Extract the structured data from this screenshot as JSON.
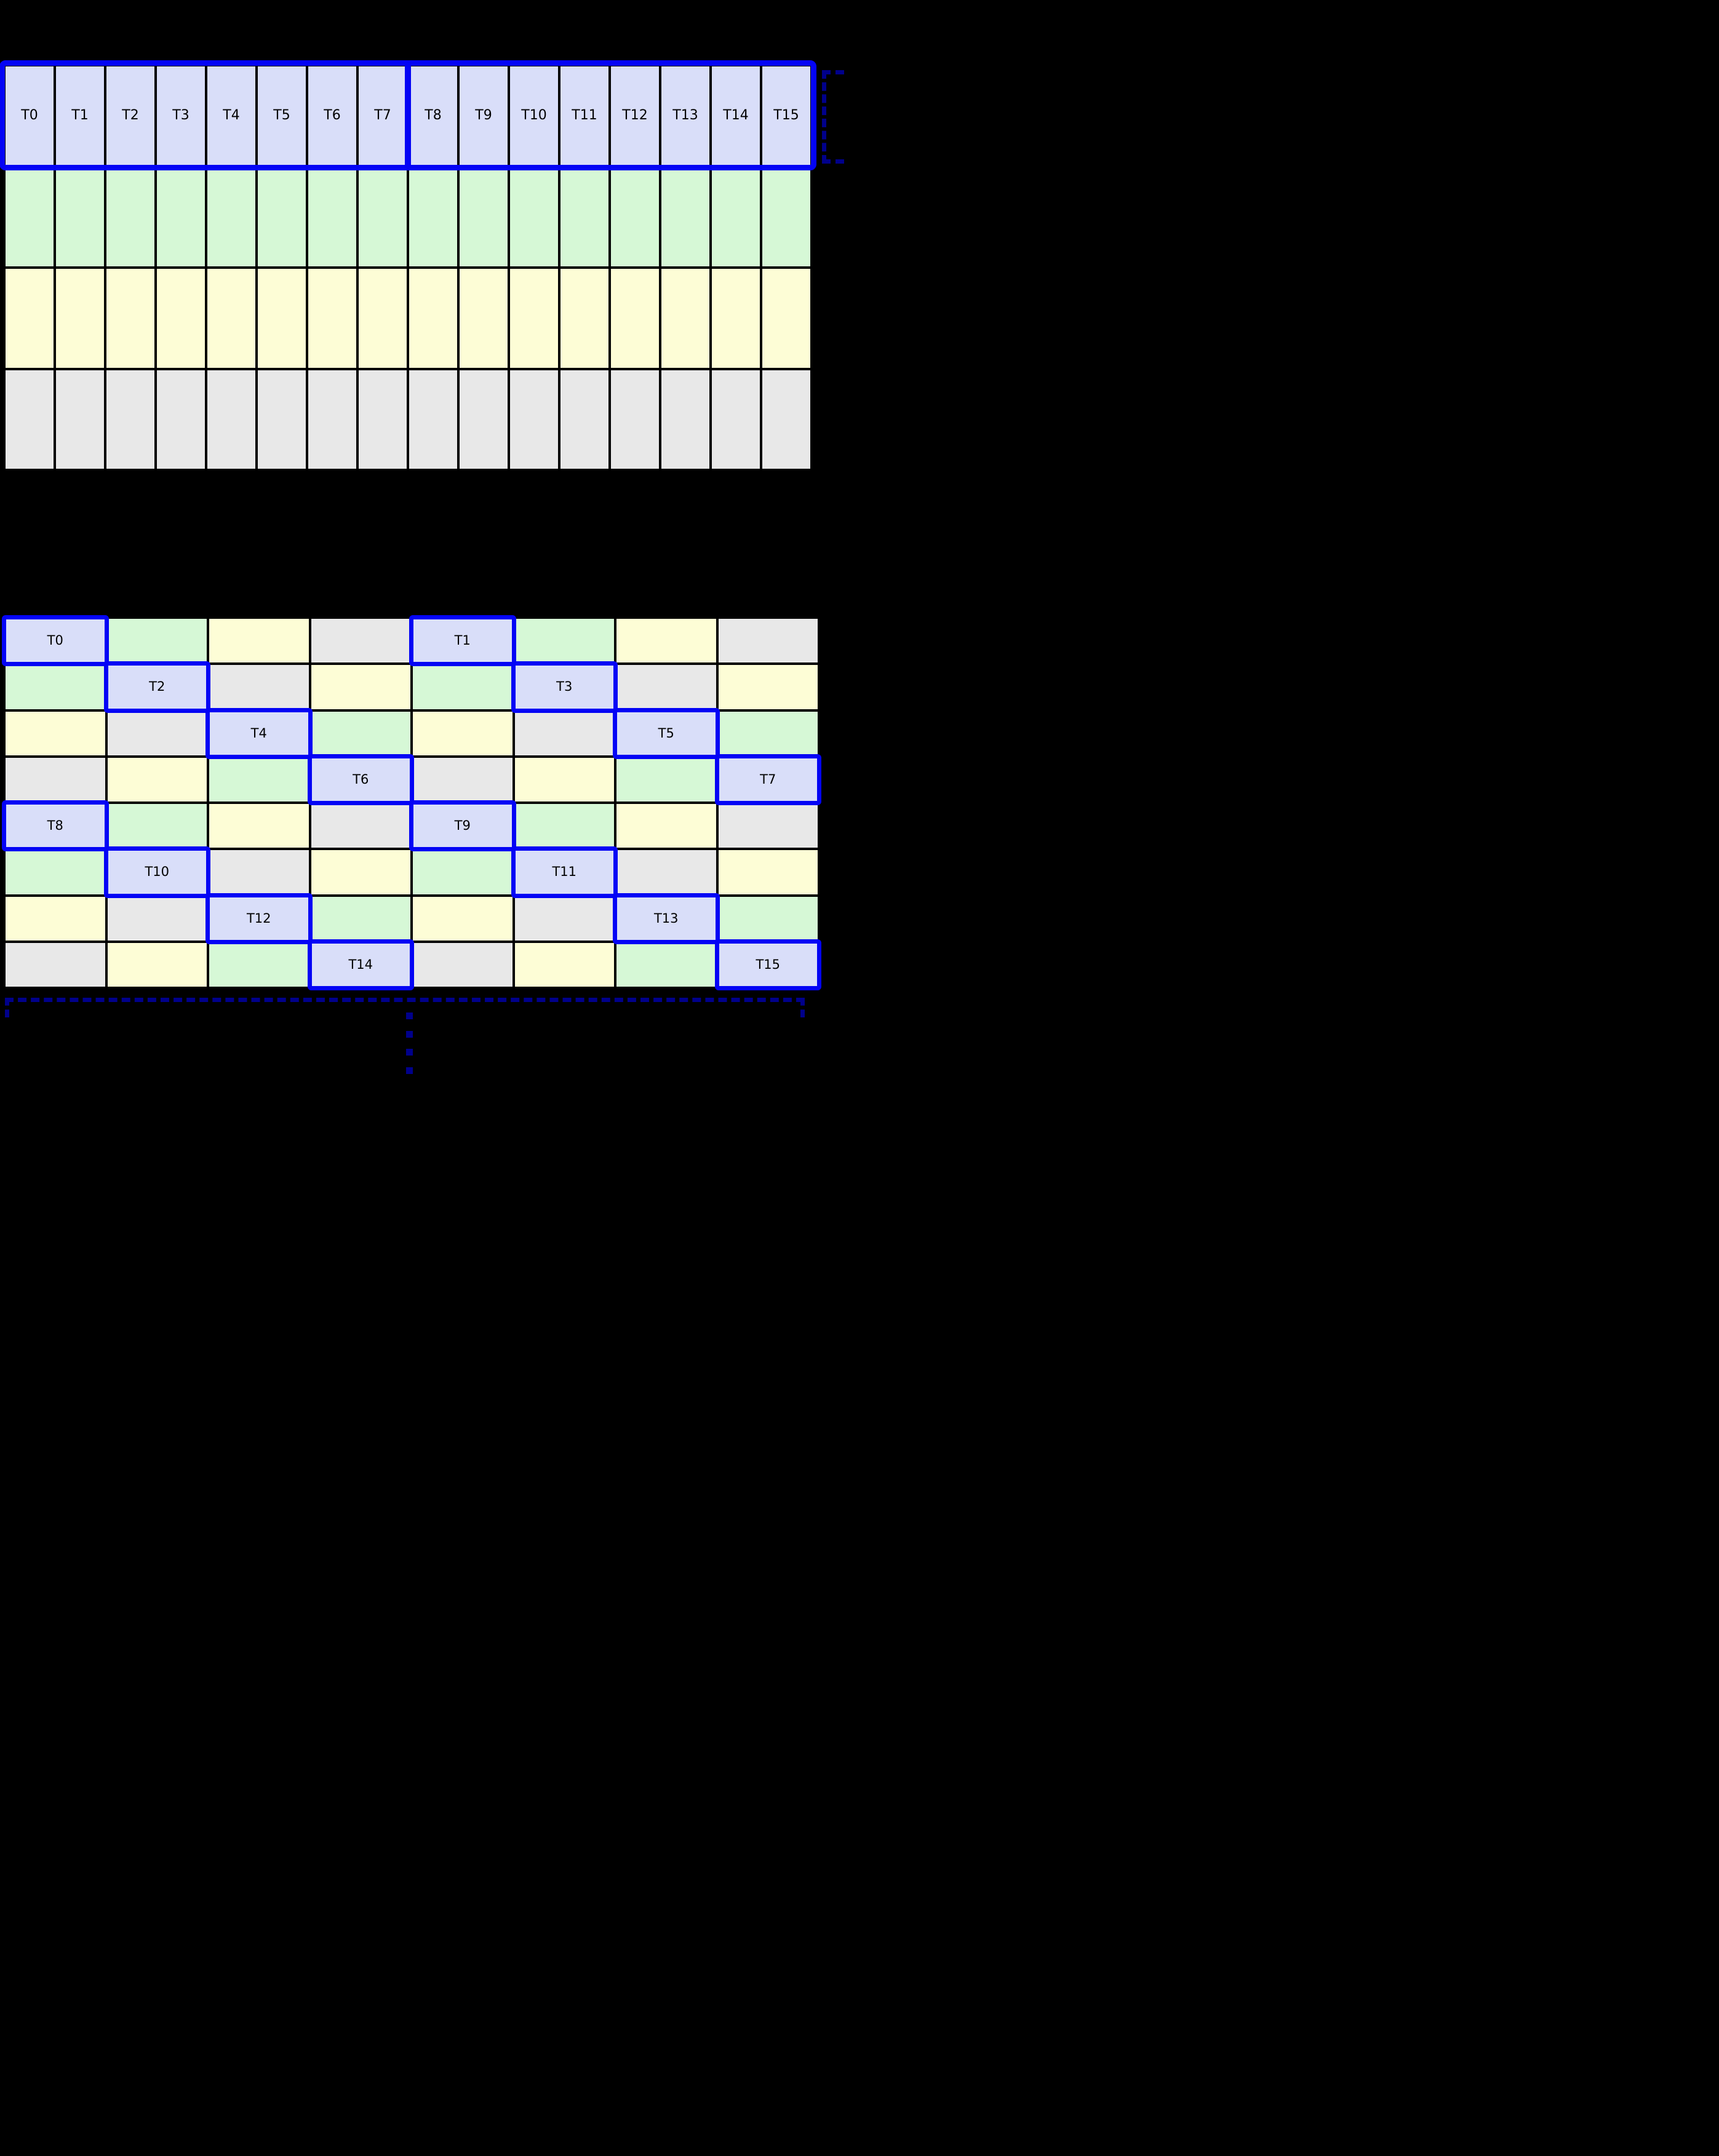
{
  "colors": {
    "background": "#000000",
    "grid_line": "#000000",
    "thread_cell_fill": "#D9DEF9",
    "green_cell_fill": "#D6F8D6",
    "yellow_cell_fill": "#FDFDD6",
    "gray_cell_fill": "#E8E8E8",
    "highlight_blue": "#0404F5",
    "bracket_navy": "#00008B",
    "label_text": "#000000"
  },
  "top_grid": {
    "columns": 16,
    "rows": 4,
    "thread_labels": [
      "T0",
      "T1",
      "T2",
      "T3",
      "T4",
      "T5",
      "T6",
      "T7",
      "T8",
      "T9",
      "T10",
      "T11",
      "T12",
      "T13",
      "T14",
      "T15"
    ],
    "row_fills": [
      "thread",
      "green",
      "yellow",
      "gray"
    ],
    "warp_divider_after_column": 8,
    "highlighted_row_index": 0
  },
  "bottom_grid": {
    "columns": 8,
    "rows": 8,
    "cells": [
      [
        "T0",
        "green",
        "yellow",
        "gray",
        "T1",
        "green",
        "yellow",
        "gray"
      ],
      [
        "green",
        "T2",
        "gray",
        "yellow",
        "green",
        "T3",
        "gray",
        "yellow"
      ],
      [
        "yellow",
        "gray",
        "T4",
        "green",
        "yellow",
        "gray",
        "T5",
        "green"
      ],
      [
        "gray",
        "yellow",
        "green",
        "T6",
        "gray",
        "yellow",
        "green",
        "T7"
      ],
      [
        "T8",
        "green",
        "yellow",
        "gray",
        "T9",
        "green",
        "yellow",
        "gray"
      ],
      [
        "green",
        "T10",
        "gray",
        "yellow",
        "green",
        "T11",
        "gray",
        "yellow"
      ],
      [
        "yellow",
        "gray",
        "T12",
        "green",
        "yellow",
        "gray",
        "T13",
        "green"
      ],
      [
        "gray",
        "yellow",
        "green",
        "T14",
        "gray",
        "yellow",
        "green",
        "T15"
      ]
    ]
  },
  "annotations": {
    "top_right_bracket": {
      "style": "dashed",
      "orientation": "vertical",
      "opens": "right"
    },
    "bottom_bracket": {
      "style": "dashed",
      "orientation": "horizontal",
      "opens": "down"
    },
    "ellipsis_dot_count": 4
  }
}
